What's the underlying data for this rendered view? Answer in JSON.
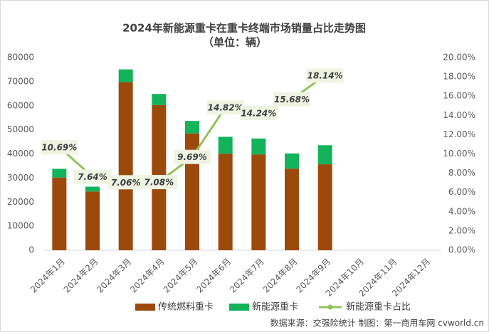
{
  "chart_data": {
    "type": "bar-line",
    "title": "2024年新能源重卡在重卡终端市场销量占比走势图",
    "subtitle": "（单位：辆）",
    "categories": [
      "2024年1月",
      "2024年2月",
      "2024年3月",
      "2024年4月",
      "2024年5月",
      "2024年6月",
      "2024年7月",
      "2024年8月",
      "2024年9月",
      "2024年10月",
      "2024年11月",
      "2024年12月"
    ],
    "series": [
      {
        "name": "传统燃料重卡",
        "color": "#9c4a0c",
        "kind": "bar",
        "values": [
          30200,
          24400,
          69800,
          60300,
          48500,
          40100,
          39800,
          33900,
          35700,
          null,
          null,
          null
        ]
      },
      {
        "name": "新能源重卡",
        "color": "#12b35a",
        "kind": "bar",
        "values": [
          3600,
          2000,
          5300,
          4600,
          5200,
          7000,
          6600,
          6300,
          7900,
          null,
          null,
          null
        ]
      },
      {
        "name": "新能源重卡占比",
        "color": "#92c25a",
        "kind": "line",
        "axis": "y2",
        "values": [
          10.69,
          7.64,
          7.06,
          7.08,
          9.69,
          14.82,
          14.24,
          15.68,
          18.14,
          null,
          null,
          null
        ],
        "value_labels": [
          "10.69%",
          "7.64%",
          "7.06%",
          "7.08%",
          "9.69%",
          "14.82%",
          "14.24%",
          "15.68%",
          "18.14%",
          null,
          null,
          null
        ]
      }
    ],
    "ylim": [
      0,
      80000
    ],
    "yticks": [
      0,
      10000,
      20000,
      30000,
      40000,
      50000,
      60000,
      70000,
      80000
    ],
    "y2lim": [
      0,
      20
    ],
    "y2ticks": [
      {
        "value": 0,
        "label": "0.00%"
      },
      {
        "value": 2,
        "label": "2.00%"
      },
      {
        "value": 4,
        "label": "4.00%"
      },
      {
        "value": 6,
        "label": "6.00%"
      },
      {
        "value": 8,
        "label": "8.00%"
      },
      {
        "value": 10,
        "label": "10.00%"
      },
      {
        "value": 12,
        "label": "12.00%"
      },
      {
        "value": 14,
        "label": "14.00%"
      },
      {
        "value": 16,
        "label": "16.00%"
      },
      {
        "value": 18,
        "label": "18.00%"
      },
      {
        "value": 20,
        "label": "20.00%"
      }
    ],
    "grid": false,
    "legend": "bottom",
    "source": "数据来源：交强险统计  制图：第一商用车网 cvworld.cn"
  }
}
